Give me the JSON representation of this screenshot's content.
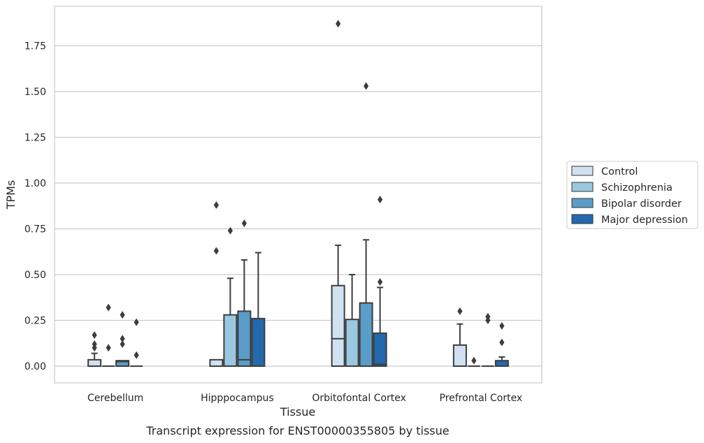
{
  "chart_data": {
    "type": "box",
    "title": "",
    "caption": "Transcript expression for ENST00000355805 by tissue",
    "xlabel": "Tissue",
    "ylabel": "TPMs",
    "ylim": [
      -0.09,
      1.97
    ],
    "yticks": [
      "0.00",
      "0.25",
      "0.50",
      "0.75",
      "1.00",
      "1.25",
      "1.50",
      "1.75"
    ],
    "grid": "horizontal",
    "legend_position": "right",
    "categories": [
      "Cerebellum",
      "Hipppocampus",
      "Orbitofontal Cortex",
      "Prefrontal Cortex"
    ],
    "series": [
      {
        "name": "Control",
        "color": "#d0e2f2",
        "boxes": [
          {
            "q1": 0.0,
            "median": 0.0,
            "q3": 0.035,
            "whisker_low": 0.0,
            "whisker_high": 0.07,
            "outliers": [
              0.17,
              0.12,
              0.1
            ]
          },
          {
            "q1": 0.0,
            "median": 0.0,
            "q3": 0.035,
            "whisker_low": 0.0,
            "whisker_high": 0.035,
            "outliers": [
              0.88,
              0.63
            ]
          },
          {
            "q1": 0.0,
            "median": 0.15,
            "q3": 0.44,
            "whisker_low": 0.0,
            "whisker_high": 0.66,
            "outliers": [
              1.87
            ]
          },
          {
            "q1": 0.0,
            "median": 0.0,
            "q3": 0.115,
            "whisker_low": 0.0,
            "whisker_high": 0.23,
            "outliers": [
              0.3
            ]
          }
        ]
      },
      {
        "name": "Schizophrenia",
        "color": "#9ac8e0",
        "boxes": [
          {
            "q1": 0.0,
            "median": 0.0,
            "q3": 0.0,
            "whisker_low": 0.0,
            "whisker_high": 0.0,
            "outliers": [
              0.32,
              0.1
            ]
          },
          {
            "q1": 0.0,
            "median": 0.0,
            "q3": 0.28,
            "whisker_low": 0.0,
            "whisker_high": 0.48,
            "outliers": [
              0.74
            ]
          },
          {
            "q1": 0.0,
            "median": 0.0,
            "q3": 0.255,
            "whisker_low": 0.0,
            "whisker_high": 0.5,
            "outliers": []
          },
          {
            "q1": 0.0,
            "median": 0.0,
            "q3": 0.0,
            "whisker_low": 0.0,
            "whisker_high": 0.0,
            "outliers": [
              0.03
            ]
          }
        ]
      },
      {
        "name": "Bipolar disorder",
        "color": "#5a9dc9",
        "boxes": [
          {
            "q1": 0.0,
            "median": 0.025,
            "q3": 0.03,
            "whisker_low": 0.0,
            "whisker_high": 0.03,
            "outliers": [
              0.28,
              0.15,
              0.12
            ]
          },
          {
            "q1": 0.0,
            "median": 0.035,
            "q3": 0.3,
            "whisker_low": 0.0,
            "whisker_high": 0.58,
            "outliers": [
              0.78
            ]
          },
          {
            "q1": 0.0,
            "median": 0.0,
            "q3": 0.345,
            "whisker_low": 0.0,
            "whisker_high": 0.69,
            "outliers": [
              1.53
            ]
          },
          {
            "q1": 0.0,
            "median": 0.0,
            "q3": 0.0,
            "whisker_low": 0.0,
            "whisker_high": 0.0,
            "outliers": [
              0.27,
              0.25
            ]
          }
        ]
      },
      {
        "name": "Major depression",
        "color": "#2369ad",
        "boxes": [
          {
            "q1": 0.0,
            "median": 0.0,
            "q3": 0.0,
            "whisker_low": 0.0,
            "whisker_high": 0.0,
            "outliers": [
              0.24,
              0.06
            ]
          },
          {
            "q1": 0.0,
            "median": 0.0,
            "q3": 0.26,
            "whisker_low": 0.0,
            "whisker_high": 0.62,
            "outliers": []
          },
          {
            "q1": 0.0,
            "median": 0.01,
            "q3": 0.18,
            "whisker_low": 0.0,
            "whisker_high": 0.43,
            "outliers": [
              0.91,
              0.46
            ]
          },
          {
            "q1": 0.0,
            "median": 0.0,
            "q3": 0.03,
            "whisker_low": 0.0,
            "whisker_high": 0.05,
            "outliers": [
              0.22,
              0.13
            ]
          }
        ]
      }
    ]
  }
}
